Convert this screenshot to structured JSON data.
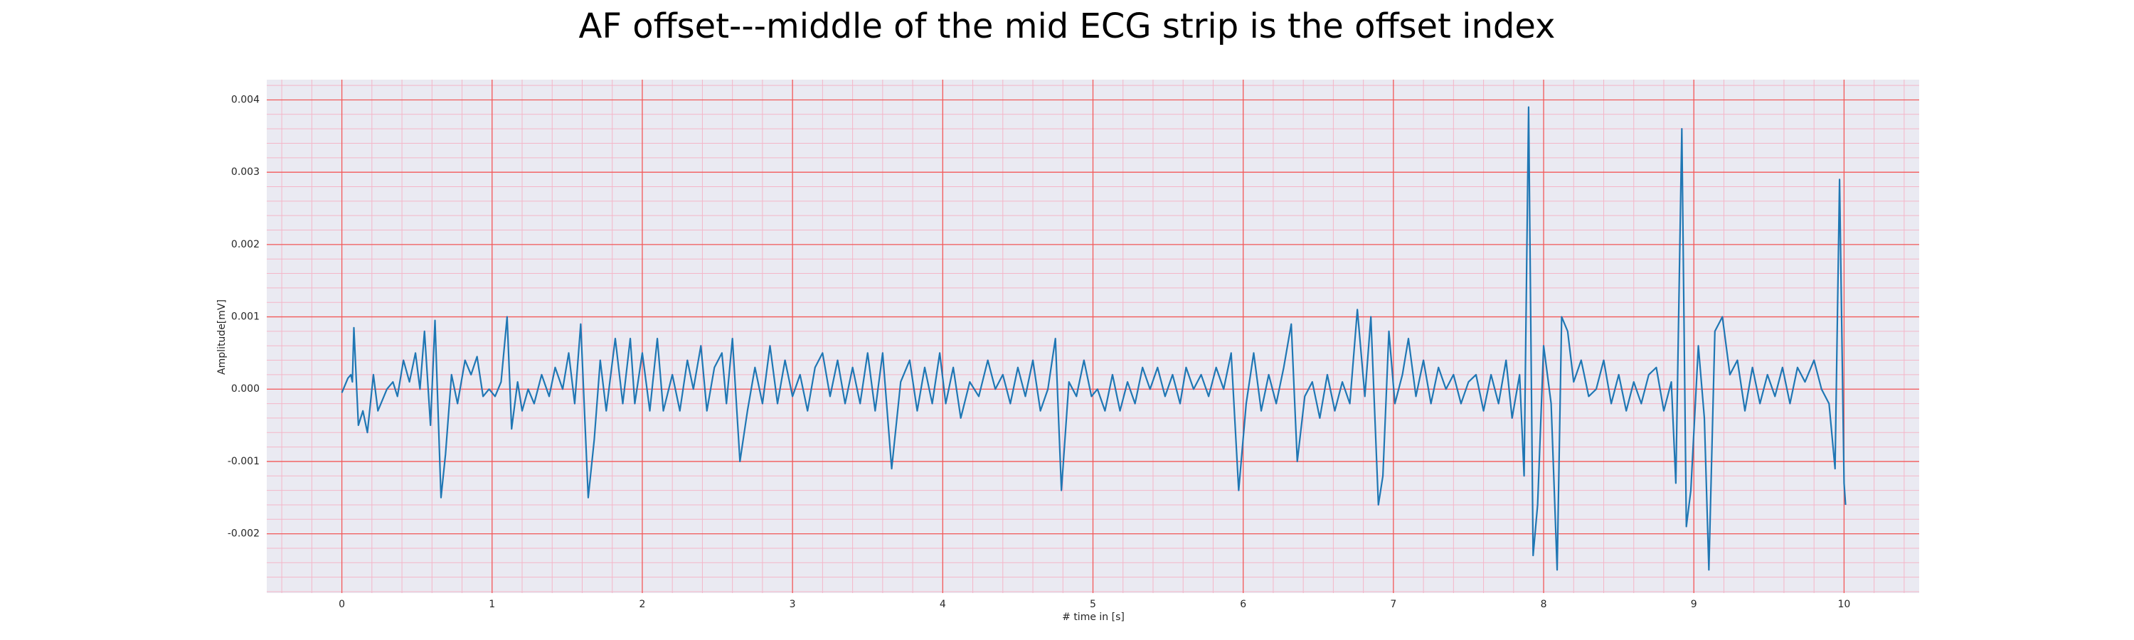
{
  "chart_data": {
    "type": "line",
    "title": "AF offset---middle of the mid ECG strip is the offset index",
    "xlabel": "# time in [s]",
    "ylabel": "Amplitude[mV]",
    "color": "#1f77b4",
    "grid": true,
    "minor_grid": true,
    "xlim": [
      -0.5,
      10.5
    ],
    "ylim": [
      -0.00282,
      0.00428
    ],
    "xticks": [
      0,
      1,
      2,
      3,
      4,
      5,
      6,
      7,
      8,
      9,
      10
    ],
    "yticks": [
      -0.002,
      -0.001,
      {
        "value": 0,
        "label": "0.000"
      },
      0.001,
      0.002,
      0.003,
      0.004
    ],
    "x": [
      0.0,
      0.04,
      0.06,
      0.07,
      0.08,
      0.11,
      0.14,
      0.17,
      0.21,
      0.24,
      0.3,
      0.34,
      0.37,
      0.41,
      0.45,
      0.49,
      0.52,
      0.55,
      0.59,
      0.62,
      0.66,
      0.69,
      0.73,
      0.77,
      0.82,
      0.86,
      0.9,
      0.94,
      0.98,
      1.02,
      1.06,
      1.1,
      1.13,
      1.17,
      1.2,
      1.24,
      1.28,
      1.33,
      1.38,
      1.42,
      1.47,
      1.51,
      1.55,
      1.59,
      1.64,
      1.68,
      1.72,
      1.76,
      1.82,
      1.87,
      1.92,
      1.95,
      2.0,
      2.05,
      2.1,
      2.14,
      2.2,
      2.25,
      2.3,
      2.34,
      2.39,
      2.43,
      2.48,
      2.53,
      2.56,
      2.6,
      2.65,
      2.7,
      2.75,
      2.8,
      2.85,
      2.9,
      2.95,
      3.0,
      3.05,
      3.1,
      3.15,
      3.2,
      3.25,
      3.3,
      3.35,
      3.4,
      3.45,
      3.5,
      3.55,
      3.6,
      3.66,
      3.72,
      3.78,
      3.83,
      3.88,
      3.93,
      3.98,
      4.02,
      4.07,
      4.12,
      4.18,
      4.24,
      4.3,
      4.35,
      4.4,
      4.45,
      4.5,
      4.55,
      4.6,
      4.65,
      4.7,
      4.75,
      4.79,
      4.84,
      4.89,
      4.94,
      4.99,
      5.03,
      5.08,
      5.13,
      5.18,
      5.23,
      5.28,
      5.33,
      5.38,
      5.43,
      5.48,
      5.53,
      5.58,
      5.62,
      5.67,
      5.72,
      5.77,
      5.82,
      5.87,
      5.92,
      5.97,
      6.02,
      6.07,
      6.12,
      6.17,
      6.22,
      6.27,
      6.32,
      6.36,
      6.41,
      6.46,
      6.51,
      6.56,
      6.61,
      6.66,
      6.71,
      6.76,
      6.81,
      6.85,
      6.9,
      6.93,
      6.97,
      7.01,
      7.06,
      7.1,
      7.15,
      7.2,
      7.25,
      7.3,
      7.35,
      7.4,
      7.45,
      7.5,
      7.55,
      7.6,
      7.65,
      7.7,
      7.75,
      7.79,
      7.84,
      7.87,
      7.9,
      7.93,
      7.96,
      8.0,
      8.05,
      8.09,
      8.12,
      8.16,
      8.2,
      8.25,
      8.3,
      8.35,
      8.4,
      8.45,
      8.5,
      8.55,
      8.6,
      8.65,
      8.7,
      8.75,
      8.8,
      8.85,
      8.88,
      8.92,
      8.95,
      8.98,
      9.03,
      9.07,
      9.1,
      9.14,
      9.19,
      9.24,
      9.29,
      9.34,
      9.39,
      9.44,
      9.49,
      9.54,
      9.59,
      9.64,
      9.69,
      9.74,
      9.8,
      9.85,
      9.9,
      9.94,
      9.97,
      10.0,
      10.01
    ],
    "values": [
      -5e-05,
      0.00015,
      0.0002,
      0.0001,
      0.00085,
      -0.0005,
      -0.0003,
      -0.0006,
      0.0002,
      -0.0003,
      0.0,
      0.0001,
      -0.0001,
      0.0004,
      0.0001,
      0.0005,
      0.0,
      0.0008,
      -0.0005,
      0.00095,
      -0.0015,
      -0.0009,
      0.0002,
      -0.0002,
      0.0004,
      0.0002,
      0.00045,
      -0.0001,
      0.0,
      -0.0001,
      0.0001,
      0.001,
      -0.00055,
      0.0001,
      -0.0003,
      0.0,
      -0.0002,
      0.0002,
      -0.0001,
      0.0003,
      0.0,
      0.0005,
      -0.0002,
      0.0009,
      -0.0015,
      -0.0007,
      0.0004,
      -0.0003,
      0.0007,
      -0.0002,
      0.0007,
      -0.0002,
      0.0005,
      -0.0003,
      0.0007,
      -0.0003,
      0.0002,
      -0.0003,
      0.0004,
      0.0,
      0.0006,
      -0.0003,
      0.0003,
      0.0005,
      -0.0002,
      0.0007,
      -0.001,
      -0.0003,
      0.0003,
      -0.0002,
      0.0006,
      -0.0002,
      0.0004,
      -0.0001,
      0.0002,
      -0.0003,
      0.0003,
      0.0005,
      -0.0001,
      0.0004,
      -0.0002,
      0.0003,
      -0.0002,
      0.0005,
      -0.0003,
      0.0005,
      -0.0011,
      0.0001,
      0.0004,
      -0.0003,
      0.0003,
      -0.0002,
      0.0005,
      -0.0002,
      0.0003,
      -0.0004,
      0.0001,
      -0.0001,
      0.0004,
      0.0,
      0.0002,
      -0.0002,
      0.0003,
      -0.0001,
      0.0004,
      -0.0003,
      0.0,
      0.0007,
      -0.0014,
      0.0001,
      -0.0001,
      0.0004,
      -0.0001,
      0.0,
      -0.0003,
      0.0002,
      -0.0003,
      0.0001,
      -0.0002,
      0.0003,
      0.0,
      0.0003,
      -0.0001,
      0.0002,
      -0.0002,
      0.0003,
      0.0,
      0.0002,
      -0.0001,
      0.0003,
      0.0,
      0.0005,
      -0.0014,
      -0.0002,
      0.0005,
      -0.0003,
      0.0002,
      -0.0002,
      0.0003,
      0.0009,
      -0.001,
      -0.0001,
      0.0001,
      -0.0004,
      0.0002,
      -0.0003,
      0.0001,
      -0.0002,
      0.0011,
      -0.0001,
      0.001,
      -0.0016,
      -0.0012,
      0.0008,
      -0.0002,
      0.0002,
      0.0007,
      -0.0001,
      0.0004,
      -0.0002,
      0.0003,
      0.0,
      0.0002,
      -0.0002,
      0.0001,
      0.0002,
      -0.0003,
      0.0002,
      -0.0002,
      0.0004,
      -0.0004,
      0.0002,
      -0.0012,
      0.0039,
      -0.0023,
      -0.0016,
      0.0006,
      -0.0002,
      -0.0025,
      0.001,
      0.0008,
      0.0001,
      0.0004,
      -0.0001,
      0.0,
      0.0004,
      -0.0002,
      0.0002,
      -0.0003,
      0.0001,
      -0.0002,
      0.0002,
      0.0003,
      -0.0003,
      0.0001,
      -0.0013,
      0.0036,
      -0.0019,
      -0.0014,
      0.0006,
      -0.0004,
      -0.0025,
      0.0008,
      0.001,
      0.0002,
      0.0004,
      -0.0003,
      0.0003,
      -0.0002,
      0.0002,
      -0.0001,
      0.0003,
      -0.0002,
      0.0003,
      0.0001,
      0.0004,
      0.0,
      -0.0002,
      -0.0011,
      0.0029,
      -0.0013,
      -0.0016
    ]
  }
}
